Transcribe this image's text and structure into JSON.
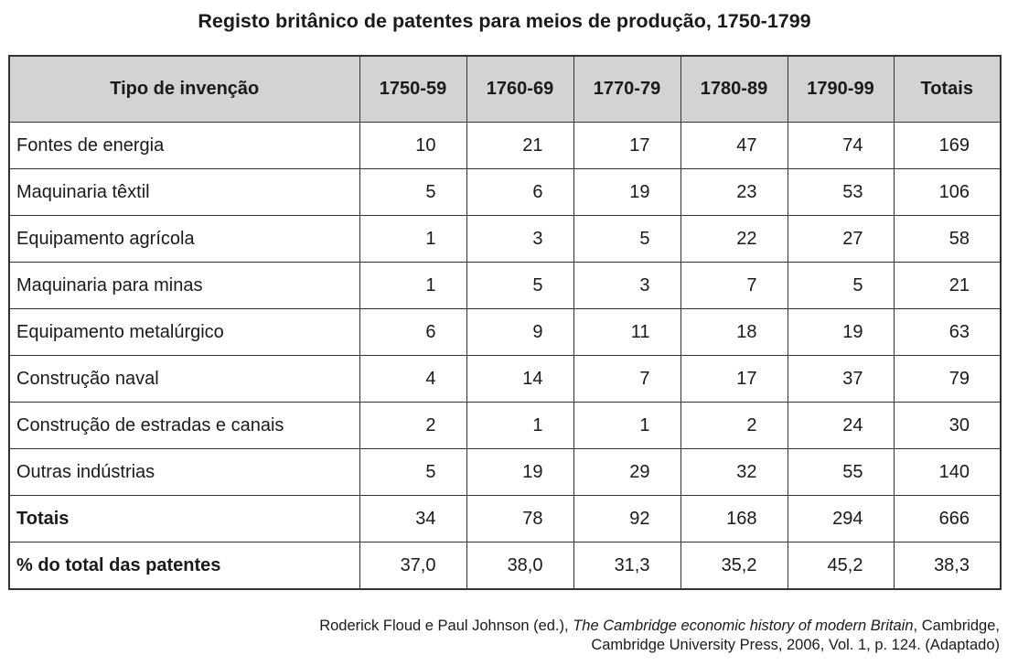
{
  "title": "Registo britânico de patentes para meios de produção, 1750-1799",
  "table": {
    "headers": [
      "Tipo de invenção",
      "1750-59",
      "1760-69",
      "1770-79",
      "1780-89",
      "1790-99",
      "Totais"
    ],
    "rows": [
      [
        "Fontes de energia",
        "10",
        "21",
        "17",
        "47",
        "74",
        "169"
      ],
      [
        "Maquinaria têxtil",
        "5",
        "6",
        "19",
        "23",
        "53",
        "106"
      ],
      [
        "Equipamento agrícola",
        "1",
        "3",
        "5",
        "22",
        "27",
        "58"
      ],
      [
        "Maquinaria para minas",
        "1",
        "5",
        "3",
        "7",
        "5",
        "21"
      ],
      [
        "Equipamento metalúrgico",
        "6",
        "9",
        "11",
        "18",
        "19",
        "63"
      ],
      [
        "Construção naval",
        "4",
        "14",
        "7",
        "17",
        "37",
        "79"
      ],
      [
        "Construção de estradas e canais",
        "2",
        "1",
        "1",
        "2",
        "24",
        "30"
      ],
      [
        "Outras indústrias",
        "5",
        "19",
        "29",
        "32",
        "55",
        "140"
      ],
      [
        "Totais",
        "34",
        "78",
        "92",
        "168",
        "294",
        "666"
      ],
      [
        "% do total das patentes",
        "37,0",
        "38,0",
        "31,3",
        "35,2",
        "45,2",
        "38,3"
      ]
    ]
  },
  "source": {
    "authors": "Roderick Floud e Paul Johnson (ed.), ",
    "book_title": "The Cambridge economic history of modern Britain",
    "rest_line1": ", Cambridge,",
    "line2": "Cambridge University Press, 2006, Vol. 1, p. 124. (Adaptado)"
  },
  "colors": {
    "header_bg": "#d1d3d4",
    "border": "#333333",
    "text": "#1a1a1a"
  }
}
